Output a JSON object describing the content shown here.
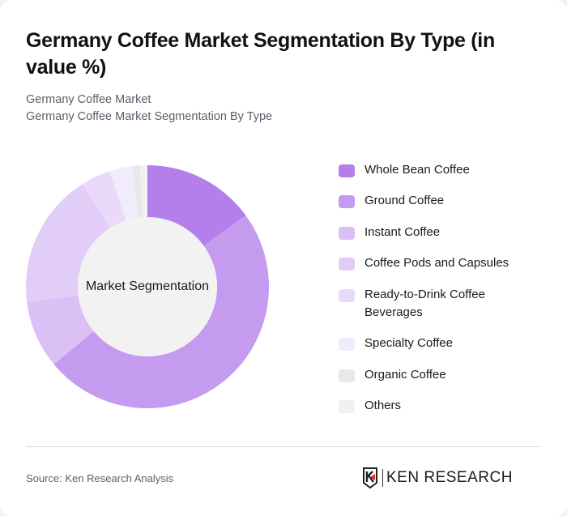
{
  "header": {
    "title": "Germany Coffee Market Segmentation By Type (in value %)",
    "subtitle_line1": "Germany Coffee Market",
    "subtitle_line2": "Germany Coffee Market Segmentation By Type"
  },
  "chart": {
    "center_label": "Market Segmentation"
  },
  "legend": {
    "items": [
      {
        "label": "Whole Bean Coffee",
        "color": "#b47fea"
      },
      {
        "label": "Ground Coffee",
        "color": "#c59bef"
      },
      {
        "label": "Instant Coffee",
        "color": "#dbc0f6"
      },
      {
        "label": "Coffee Pods and Capsules",
        "color": "#e1cdf7"
      },
      {
        "label": "Ready-to-Drink Coffee Beverages",
        "color": "#ead9fa"
      },
      {
        "label": "Specialty Coffee",
        "color": "#f2ebfc"
      },
      {
        "label": "Organic Coffee",
        "color": "#e8e8e8"
      },
      {
        "label": "Others",
        "color": "#f0f0f0"
      }
    ]
  },
  "footer": {
    "source": "Source: Ken Research Analysis",
    "logo_text": "KEN RESEARCH",
    "logo_icon": "ken-research-k-shield-icon"
  },
  "chart_data": {
    "type": "pie",
    "subtype": "donut",
    "title": "Germany Coffee Market Segmentation By Type (in value %)",
    "subtitle": "Germany Coffee Market / Germany Coffee Market Segmentation By Type",
    "center_label": "Market Segmentation",
    "categories": [
      "Whole Bean Coffee",
      "Ground Coffee",
      "Instant Coffee",
      "Coffee Pods and Capsules",
      "Ready-to-Drink Coffee Beverages",
      "Specialty Coffee",
      "Organic Coffee",
      "Others"
    ],
    "values": [
      15,
      49,
      9,
      18,
      4,
      3,
      1,
      1
    ],
    "colors": [
      "#b47fea",
      "#c59bef",
      "#dbc0f6",
      "#e1cdf7",
      "#ead9fa",
      "#f2ebfc",
      "#e8e8e8",
      "#f0f0f0"
    ],
    "unit": "%",
    "start_angle": "12 o'clock, clockwise",
    "legend_position": "right",
    "source": "Source: Ken Research Analysis"
  }
}
